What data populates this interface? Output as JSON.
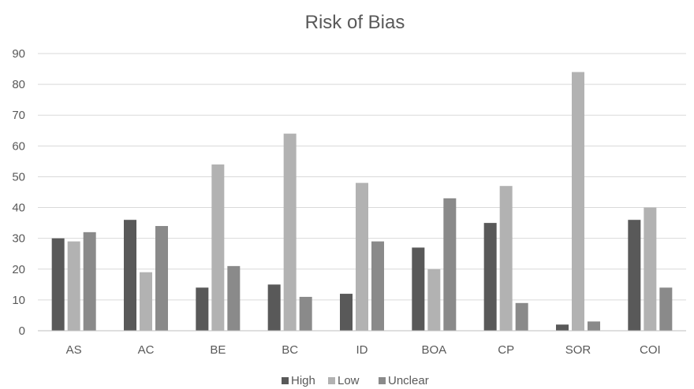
{
  "chart_data": {
    "type": "bar",
    "title": "Risk of Bias",
    "xlabel": "",
    "ylabel": "",
    "categories": [
      "AS",
      "AC",
      "BE",
      "BC",
      "ID",
      "BOA",
      "CP",
      "SOR",
      "COI"
    ],
    "series": [
      {
        "name": "High",
        "color": "#595959",
        "values": [
          30,
          36,
          14,
          15,
          12,
          27,
          35,
          2,
          36
        ]
      },
      {
        "name": "Low",
        "color": "#b2b2b2",
        "values": [
          29,
          19,
          54,
          64,
          48,
          20,
          47,
          84,
          40
        ]
      },
      {
        "name": "Unclear",
        "color": "#8a8a8a",
        "values": [
          32,
          34,
          21,
          11,
          29,
          43,
          9,
          3,
          14
        ]
      }
    ],
    "ylim": [
      0,
      90
    ],
    "yticks": [
      0,
      10,
      20,
      30,
      40,
      50,
      60,
      70,
      80,
      90
    ],
    "grid": true,
    "legend_position": "bottom"
  }
}
